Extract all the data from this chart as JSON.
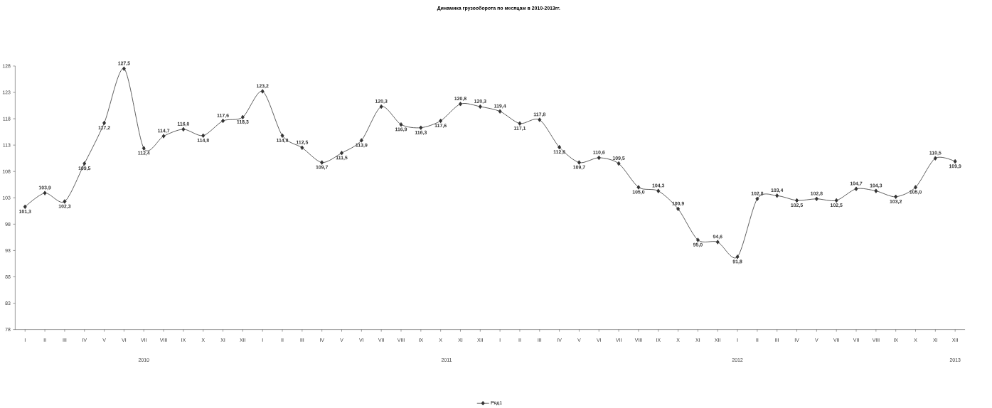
{
  "chart_data": {
    "type": "line",
    "title": "Динамика грузооборота по месяцам в 2010-2013гг.",
    "categories": [
      "I",
      "II",
      "III",
      "IV",
      "V",
      "VI",
      "VII",
      "VIII",
      "IX",
      "X",
      "XI",
      "XII",
      "I",
      "II",
      "III",
      "IV",
      "V",
      "VI",
      "VII",
      "VIII",
      "IX",
      "X",
      "XI",
      "XII",
      "I",
      "II",
      "III",
      "IV",
      "V",
      "VI",
      "VII",
      "VIII",
      "IX",
      "X",
      "XI",
      "XII",
      "I",
      "II",
      "III",
      "IV",
      "V",
      "VII",
      "VII",
      "VIII",
      "IX",
      "X",
      "XI",
      "XII"
    ],
    "series": [
      {
        "name": "Ряд1",
        "color": "#333333",
        "values": [
          101.3,
          103.9,
          102.3,
          109.5,
          117.2,
          127.5,
          112.4,
          114.7,
          116.0,
          114.8,
          117.6,
          118.3,
          123.2,
          114.8,
          112.5,
          109.7,
          111.5,
          113.9,
          120.3,
          116.9,
          116.3,
          117.6,
          120.8,
          120.3,
          119.4,
          117.1,
          117.8,
          112.6,
          109.7,
          110.6,
          109.5,
          105.0,
          104.3,
          100.9,
          95.0,
          94.6,
          91.8,
          102.8,
          103.4,
          102.5,
          102.8,
          102.5,
          104.7,
          104.3,
          103.2,
          105.0,
          110.5,
          109.9
        ],
        "value_labels": [
          "101,3",
          "103,9",
          "102,3",
          "109,5",
          "117,2",
          "127,5",
          "112,4",
          "114,7",
          "116,0",
          "114,8",
          "117,6",
          "118,3",
          "123,2",
          "114,8",
          "112,5",
          "109,7",
          "111,5",
          "113,9",
          "120,3",
          "116,9",
          "116,3",
          "117,6",
          "120,8",
          "120,3",
          "119,4",
          "117,1",
          "117,8",
          "112,6",
          "109,7",
          "110,6",
          "109,5",
          "105,0",
          "104,3",
          "100,9",
          "95,0",
          "94,6",
          "91,8",
          "102,8",
          "103,4",
          "102,5",
          "102,8",
          "102,5",
          "104,7",
          "104,3",
          "103,2",
          "105,0",
          "110,5",
          "109,9"
        ]
      }
    ],
    "ylim": [
      78,
      128
    ],
    "yticks": [
      78,
      83,
      88,
      93,
      98,
      103,
      108,
      113,
      118,
      123,
      128
    ],
    "legend": "bottom",
    "marker": "diamond",
    "line_style": "solid",
    "annotations": [
      "2010",
      "2011",
      "2012",
      "2013"
    ]
  }
}
